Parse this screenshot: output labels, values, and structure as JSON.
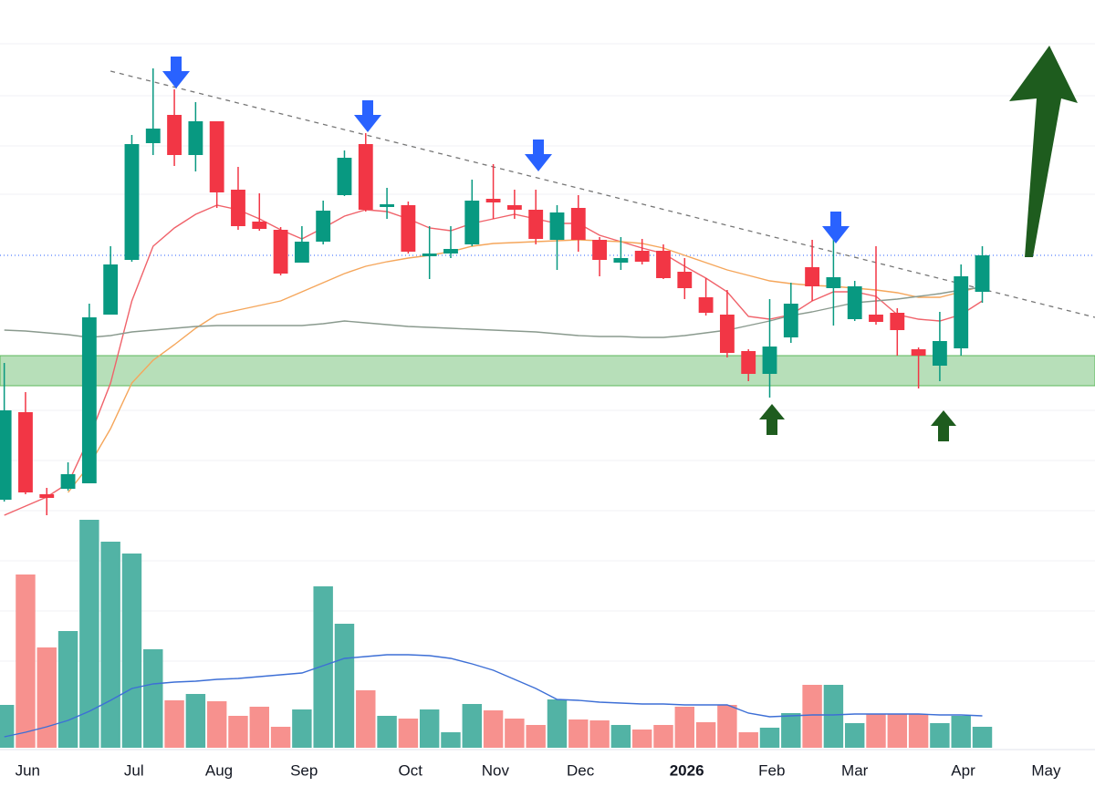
{
  "chart_data": {
    "type": "candlestick",
    "x": [
      0,
      1,
      2,
      3,
      4,
      5,
      6,
      7,
      8,
      9,
      10,
      11,
      12,
      13,
      14,
      15,
      16,
      17,
      18,
      19,
      20,
      21,
      22,
      23,
      24,
      25,
      26,
      27,
      28,
      29,
      30,
      31,
      32,
      33,
      34,
      35,
      36,
      37,
      38,
      39,
      40,
      41,
      42,
      43,
      44,
      45,
      46
    ],
    "open": [
      72,
      168,
      78,
      84,
      90,
      275,
      335,
      463,
      494,
      450,
      487,
      412,
      377,
      368,
      332,
      355,
      406,
      462,
      393,
      395,
      339,
      342,
      352,
      402,
      395,
      390,
      357,
      392,
      357,
      332,
      345,
      345,
      322,
      294,
      275,
      235,
      210,
      250,
      327,
      304,
      270,
      275,
      277,
      237,
      219,
      238,
      300
    ],
    "high": [
      222,
      190,
      85,
      113,
      287,
      350,
      472,
      545,
      522,
      508,
      487,
      437,
      408,
      371,
      372,
      400,
      455,
      474,
      414,
      399,
      372,
      372,
      423,
      440,
      412,
      412,
      395,
      406,
      360,
      360,
      358,
      352,
      337,
      315,
      302,
      237,
      292,
      310,
      357,
      362,
      312,
      350,
      282,
      239,
      278,
      330,
      350
    ],
    "low": [
      70,
      78,
      55,
      82,
      90,
      275,
      333,
      450,
      438,
      432,
      392,
      368,
      367,
      318,
      332,
      352,
      405,
      388,
      380,
      342,
      314,
      337,
      350,
      380,
      380,
      352,
      324,
      344,
      317,
      324,
      330,
      314,
      292,
      274,
      228,
      202,
      184,
      244,
      290,
      263,
      268,
      264,
      230,
      194,
      202,
      230,
      288
    ],
    "close": [
      170,
      80,
      74,
      100,
      272,
      330,
      462,
      479,
      450,
      487,
      409,
      372,
      369,
      320,
      355,
      389,
      447,
      390,
      396,
      344,
      342,
      347,
      400,
      398,
      390,
      358,
      387,
      357,
      335,
      337,
      333,
      315,
      304,
      277,
      233,
      210,
      240,
      287,
      306,
      316,
      306,
      267,
      258,
      230,
      246,
      317,
      340
    ],
    "volume": [
      47,
      190,
      110,
      128,
      250,
      226,
      213,
      108,
      52,
      59,
      51,
      35,
      45,
      23,
      42,
      177,
      136,
      63,
      35,
      32,
      42,
      17,
      48,
      41,
      32,
      25,
      53,
      31,
      30,
      25,
      20,
      25,
      45,
      28,
      47,
      17,
      22,
      38,
      69,
      69,
      27,
      37,
      37,
      37,
      27,
      35,
      23
    ],
    "lines": [
      {
        "color": "#f0626a",
        "values": [
          55,
          65,
          75,
          90,
          140,
          200,
          290,
          350,
          370,
          385,
          395,
          390,
          380,
          368,
          358,
          370,
          383,
          390,
          388,
          380,
          370,
          367,
          375,
          380,
          385,
          380,
          375,
          375,
          362,
          355,
          348,
          342,
          328,
          315,
          300,
          273,
          270,
          275,
          290,
          300,
          300,
          295,
          275,
          270,
          268,
          275,
          290
        ]
      },
      {
        "color": "#f5a65b",
        "values": [
          null,
          null,
          null,
          80,
          110,
          150,
          200,
          225,
          242,
          260,
          275,
          280,
          285,
          290,
          300,
          310,
          320,
          328,
          333,
          337,
          340,
          344,
          350,
          353,
          354,
          355,
          356,
          357,
          356,
          355,
          353,
          348,
          340,
          332,
          324,
          318,
          312,
          309,
          307,
          306,
          304,
          302,
          299,
          294,
          294,
          300,
          306
        ]
      },
      {
        "color": "#8a9a8e",
        "values": [
          258,
          257,
          255,
          253,
          250,
          252,
          256,
          258,
          260,
          262,
          263,
          263,
          263,
          263,
          263,
          265,
          268,
          266,
          264,
          262,
          261,
          260,
          259,
          258,
          257,
          256,
          254,
          252,
          251,
          251,
          250,
          250,
          252,
          255,
          258,
          263,
          268,
          274,
          278,
          283,
          288,
          290,
          292,
          295,
          298,
          302,
          305
        ]
      }
    ],
    "volume_ma": {
      "color": "#3d6fd6",
      "values": [
        12,
        17,
        23,
        30,
        40,
        52,
        65,
        70,
        72,
        73,
        75,
        76,
        78,
        80,
        82,
        90,
        98,
        100,
        102,
        102,
        101,
        98,
        92,
        85,
        75,
        65,
        53,
        52,
        50,
        49,
        48,
        48,
        47,
        47,
        47,
        38,
        34,
        35,
        36,
        36,
        37,
        37,
        37,
        37,
        36,
        36,
        35
      ]
    },
    "up_color": "#089981",
    "down_color": "#f23645",
    "up_volume_color": "#52b3a5",
    "down_volume_color": "#f7918e",
    "trendline": {
      "x": [
        5.0,
        51.3
      ],
      "y": [
        542,
        272
      ]
    },
    "level": 340,
    "zone": [
      197,
      230
    ],
    "ylim": [
      0,
      620
    ],
    "volume_lim": [
      0,
      300
    ],
    "xlim": [
      -0.2,
      51.3
    ],
    "xticks": [
      {
        "value": 1.1,
        "label": "Jun"
      },
      {
        "value": 6.1,
        "label": "Jul"
      },
      {
        "value": 10.1,
        "label": "Aug"
      },
      {
        "value": 14.1,
        "label": "Sep"
      },
      {
        "value": 19.1,
        "label": "Oct"
      },
      {
        "value": 23.1,
        "label": "Nov"
      },
      {
        "value": 27.1,
        "label": "Dec"
      },
      {
        "value": 32.1,
        "label": "2026"
      },
      {
        "value": 36.1,
        "label": "Feb"
      },
      {
        "value": 40.0,
        "label": "Mar"
      },
      {
        "value": 45.1,
        "label": "Apr"
      },
      {
        "value": 49.0,
        "label": "May"
      }
    ],
    "grid": true
  }
}
